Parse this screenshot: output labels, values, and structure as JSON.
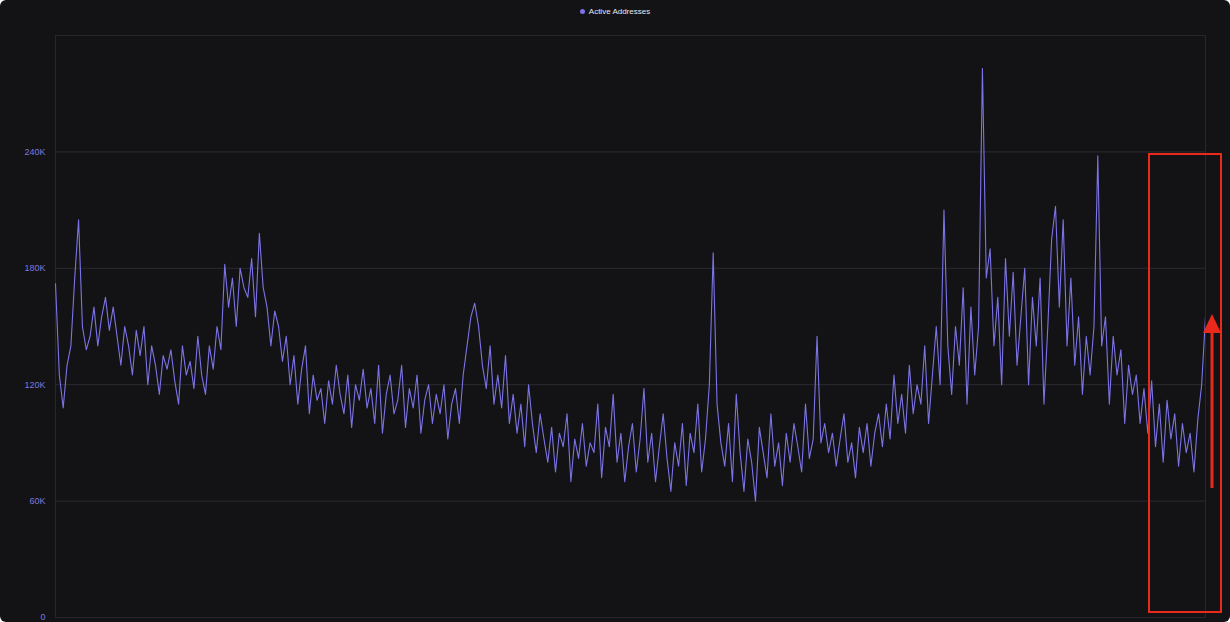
{
  "chart_data": {
    "type": "line",
    "categories": [
      null,
      null,
      null,
      null,
      null,
      null,
      null,
      null,
      null,
      null,
      null,
      null,
      null,
      null,
      null,
      null,
      null,
      null,
      null,
      null,
      null,
      null,
      null,
      null,
      null,
      null,
      null,
      null,
      null,
      null,
      null,
      null,
      null,
      null,
      null,
      null,
      null,
      null,
      null,
      null,
      null,
      null,
      null,
      null,
      null,
      null,
      null,
      null,
      null,
      null,
      null,
      null,
      null,
      null,
      null,
      null,
      null,
      null,
      null,
      null,
      null,
      null,
      null,
      null,
      null,
      null,
      null,
      null,
      null,
      null,
      null,
      null,
      null,
      null,
      null,
      null,
      null,
      null,
      null,
      null,
      null,
      null,
      null,
      null,
      null,
      null,
      null,
      null,
      null,
      null,
      null,
      null,
      null,
      null,
      null,
      null,
      null,
      null,
      null,
      null,
      null,
      null,
      null,
      null,
      null,
      null,
      null,
      null,
      null,
      null,
      null,
      null,
      null,
      null,
      null,
      null,
      null,
      null,
      null,
      null,
      null,
      null,
      null,
      null,
      null,
      null,
      null,
      null,
      null,
      null,
      null,
      null,
      null,
      null,
      null,
      null,
      null,
      null,
      null,
      null,
      null,
      null,
      null,
      null,
      null,
      null,
      null,
      null,
      null,
      null,
      null,
      null,
      null,
      null,
      null,
      null,
      null,
      null,
      null,
      null,
      null,
      null,
      null,
      null,
      null,
      null,
      null,
      null,
      null,
      null,
      null,
      null,
      null,
      null,
      null,
      null,
      null,
      null,
      null,
      null,
      null,
      null,
      null,
      null,
      null,
      null,
      null,
      null,
      null,
      null,
      null,
      null,
      null,
      null,
      null,
      null,
      null,
      null,
      null,
      null,
      null,
      null,
      null,
      null,
      null,
      null,
      null,
      null,
      null,
      null,
      null,
      null,
      null,
      null,
      null,
      null,
      null,
      null,
      null,
      null,
      null,
      null,
      null,
      null,
      null,
      null,
      null,
      null,
      null,
      null,
      null,
      null,
      null,
      null,
      null,
      null,
      null,
      null,
      null,
      null,
      null,
      null,
      null,
      null,
      null,
      null,
      null,
      null,
      null,
      null,
      null,
      null,
      null,
      null,
      null,
      null,
      null,
      null,
      null,
      null,
      null,
      null,
      null,
      null,
      null,
      null,
      null,
      null,
      null,
      null,
      null,
      null,
      null,
      null,
      null,
      null,
      null,
      null,
      null,
      null,
      null,
      null,
      null,
      null,
      null,
      null,
      null,
      null,
      null,
      null,
      null,
      null,
      null,
      null,
      null,
      null,
      null,
      null,
      null,
      null
    ],
    "series": [
      {
        "name": "Active Addresses",
        "color": "#7c74e6",
        "values": [
          172000,
          125000,
          108000,
          130000,
          140000,
          175000,
          205000,
          150000,
          138000,
          145000,
          160000,
          140000,
          155000,
          165000,
          148000,
          160000,
          145000,
          130000,
          150000,
          140000,
          125000,
          148000,
          135000,
          150000,
          120000,
          140000,
          130000,
          115000,
          135000,
          128000,
          138000,
          122000,
          110000,
          140000,
          125000,
          132000,
          118000,
          145000,
          125000,
          115000,
          140000,
          128000,
          150000,
          138000,
          182000,
          160000,
          175000,
          150000,
          180000,
          170000,
          165000,
          185000,
          155000,
          198000,
          170000,
          160000,
          140000,
          158000,
          150000,
          132000,
          145000,
          120000,
          135000,
          110000,
          128000,
          140000,
          105000,
          125000,
          112000,
          118000,
          100000,
          122000,
          110000,
          130000,
          115000,
          105000,
          125000,
          98000,
          120000,
          112000,
          128000,
          108000,
          118000,
          100000,
          130000,
          95000,
          115000,
          125000,
          105000,
          112000,
          130000,
          98000,
          118000,
          108000,
          125000,
          95000,
          112000,
          120000,
          100000,
          115000,
          105000,
          120000,
          92000,
          110000,
          118000,
          100000,
          125000,
          140000,
          155000,
          162000,
          150000,
          130000,
          118000,
          140000,
          110000,
          125000,
          108000,
          135000,
          100000,
          115000,
          95000,
          110000,
          88000,
          120000,
          100000,
          85000,
          105000,
          92000,
          80000,
          98000,
          75000,
          95000,
          88000,
          105000,
          70000,
          92000,
          82000,
          100000,
          78000,
          90000,
          85000,
          110000,
          72000,
          98000,
          88000,
          115000,
          80000,
          95000,
          70000,
          88000,
          100000,
          75000,
          92000,
          118000,
          80000,
          95000,
          70000,
          88000,
          105000,
          82000,
          65000,
          90000,
          78000,
          100000,
          68000,
          95000,
          85000,
          110000,
          75000,
          92000,
          120000,
          188000,
          110000,
          90000,
          78000,
          100000,
          70000,
          115000,
          85000,
          65000,
          92000,
          80000,
          60000,
          98000,
          85000,
          72000,
          105000,
          78000,
          90000,
          68000,
          95000,
          80000,
          100000,
          88000,
          75000,
          110000,
          82000,
          92000,
          145000,
          90000,
          100000,
          85000,
          95000,
          78000,
          92000,
          105000,
          80000,
          90000,
          72000,
          98000,
          85000,
          100000,
          78000,
          95000,
          105000,
          88000,
          110000,
          92000,
          125000,
          100000,
          115000,
          95000,
          130000,
          105000,
          120000,
          110000,
          140000,
          100000,
          125000,
          150000,
          120000,
          210000,
          140000,
          115000,
          150000,
          130000,
          170000,
          110000,
          160000,
          125000,
          150000,
          283000,
          175000,
          190000,
          140000,
          165000,
          120000,
          185000,
          145000,
          178000,
          130000,
          155000,
          180000,
          120000,
          165000,
          140000,
          175000,
          110000,
          150000,
          195000,
          212000,
          160000,
          205000,
          140000,
          175000,
          130000,
          155000,
          115000,
          145000,
          125000,
          150000,
          238000,
          140000,
          155000,
          110000,
          145000,
          125000,
          138000,
          100000,
          130000,
          115000,
          125000,
          100000,
          118000,
          95000,
          122000,
          88000,
          110000,
          80000,
          112000,
          92000,
          105000,
          78000,
          100000,
          85000,
          95000,
          75000,
          102000,
          120000,
          155000
        ]
      }
    ],
    "ylim": [
      0,
      300000
    ],
    "yticks": [
      0,
      {
        "value": 60000,
        "label": "60K"
      },
      {
        "value": 120000,
        "label": "120K"
      },
      {
        "value": 180000,
        "label": "180K"
      },
      {
        "value": 240000,
        "label": "240K"
      }
    ],
    "grid": true,
    "legend": "top",
    "tick_labels": "y"
  }
}
